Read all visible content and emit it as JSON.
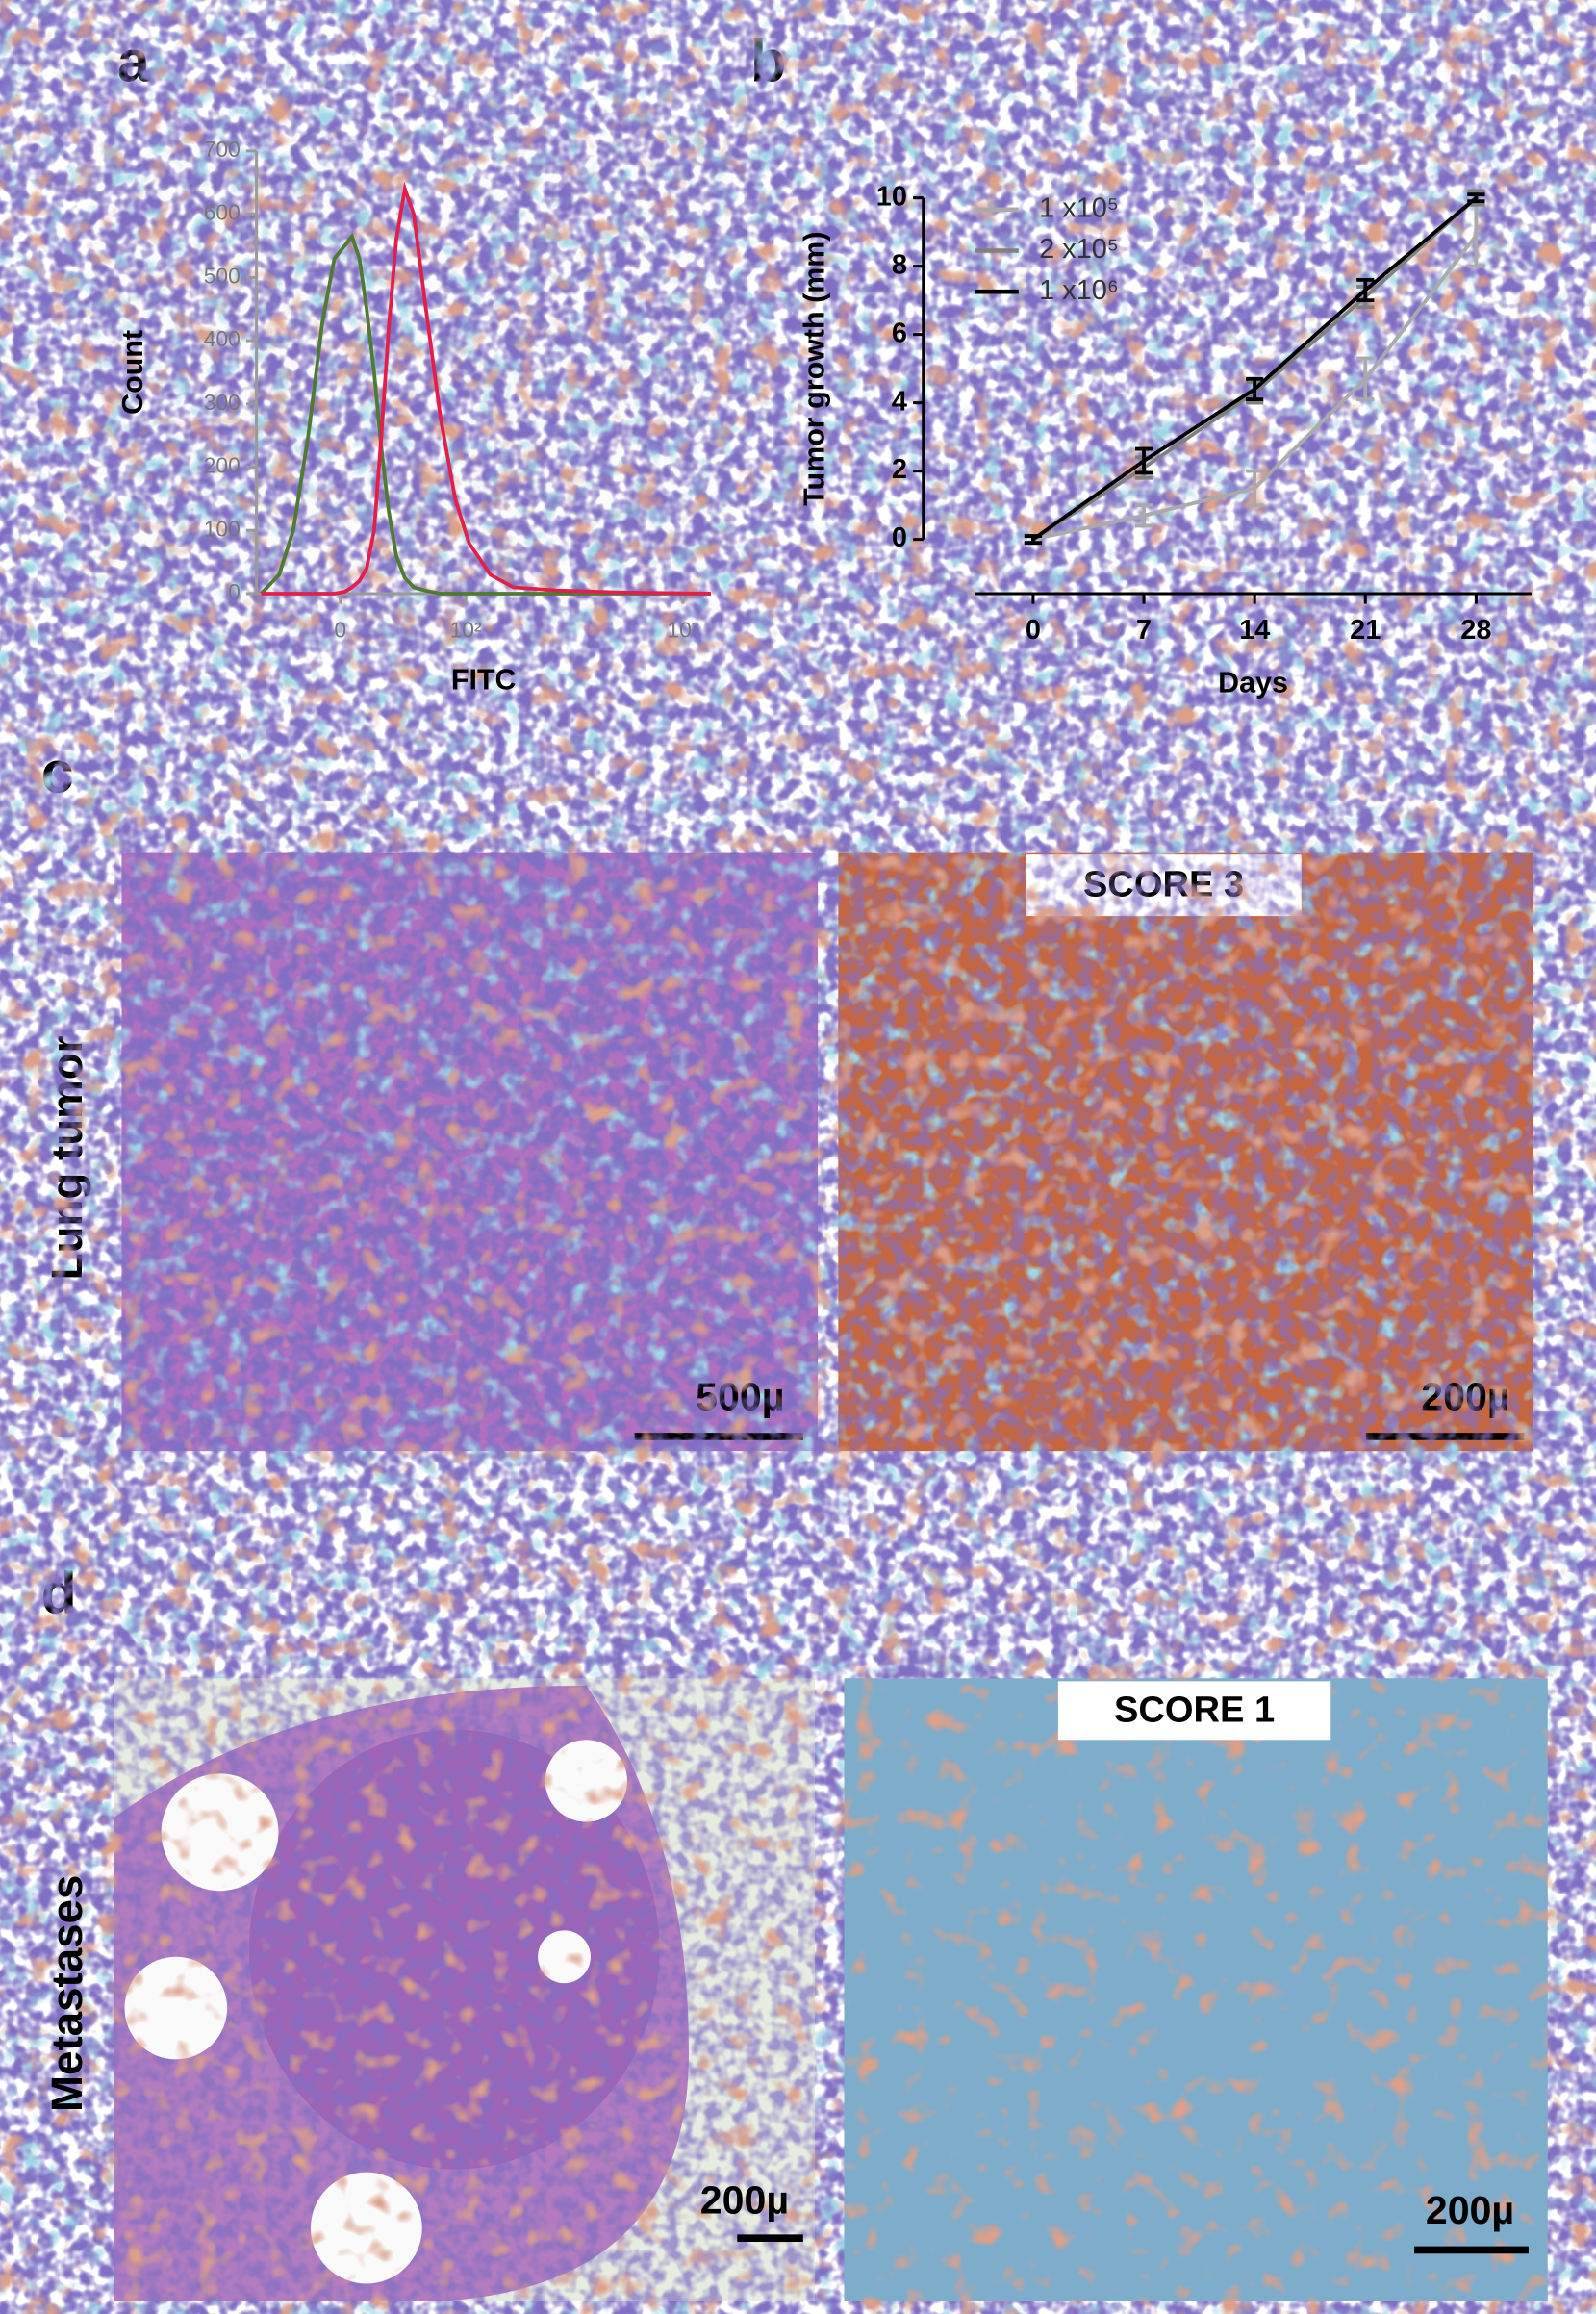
{
  "figure": {
    "panels": [
      "a",
      "b",
      "c",
      "d"
    ],
    "row_labels": [
      "Lung tumor",
      "Metastases"
    ],
    "scores": [
      "SCORE 3",
      "SCORE 1"
    ],
    "scale_bars": [
      "500µ",
      "200µ",
      "200µ",
      "200µ"
    ]
  },
  "chart_data": [
    {
      "type": "line",
      "xscale": "logicle",
      "xlabel": "FITC",
      "ylabel": "Count",
      "x": [
        -54,
        -40,
        -30,
        -20,
        -11,
        -3.6,
        2.7,
        7.2,
        11.8,
        16.4,
        21.2,
        26,
        31,
        36.3,
        42.6,
        49.5,
        58.9,
        72.8,
        88,
        104,
        133,
        171,
        271,
        501,
        1330
      ],
      "series": [
        {
          "color": "#4e7a32",
          "values": [
            0,
            30,
            100,
            250,
            430,
            530,
            550,
            565,
            530,
            450,
            350,
            230,
            130,
            60,
            25,
            10,
            5,
            0,
            0,
            0,
            0,
            0,
            0,
            0,
            0
          ]
        },
        {
          "color": "#e0204a",
          "values": [
            0,
            0,
            0,
            0,
            0,
            0,
            3,
            10,
            20,
            40,
            100,
            250,
            420,
            560,
            640,
            600,
            460,
            280,
            150,
            80,
            30,
            10,
            5,
            2,
            0
          ]
        }
      ],
      "xlim": [
        -58,
        1330
      ],
      "xticks": [
        0,
        {
          "value": 100,
          "label": "10²"
        },
        {
          "value": 1000,
          "label": "10³"
        }
      ],
      "ylim": [
        0,
        700
      ],
      "yticks": [
        0,
        100,
        200,
        300,
        400,
        500,
        600,
        700
      ]
    },
    {
      "type": "line",
      "xlabel": "Days",
      "ylabel": "Tumor growth (mm)",
      "x": [
        0,
        7,
        14,
        21,
        28
      ],
      "series": [
        {
          "name": "1 x10⁵",
          "color": "#aaaaaa",
          "values": [
            0,
            0.7,
            1.5,
            4.7,
            8.9
          ],
          "errors": [
            0.1,
            0.3,
            0.5,
            0.6,
            0.9
          ]
        },
        {
          "name": "2 x10⁵",
          "color": "#808080",
          "values": [
            0,
            2.1,
            4.3,
            7.1,
            10
          ],
          "errors": [
            0.1,
            0.3,
            0.3,
            0.3,
            0.2
          ]
        },
        {
          "name": "1 x10⁶",
          "color": "#000000",
          "values": [
            0,
            2.3,
            4.4,
            7.3,
            10
          ],
          "errors": [
            0.1,
            0.35,
            0.3,
            0.3,
            0.1
          ]
        }
      ],
      "xlim": [
        -3.7,
        31.5
      ],
      "xticks": [
        0,
        7,
        14,
        21,
        28
      ],
      "ylim": [
        0,
        10
      ],
      "yticks": [
        0,
        2,
        4,
        6,
        8,
        10
      ]
    }
  ]
}
